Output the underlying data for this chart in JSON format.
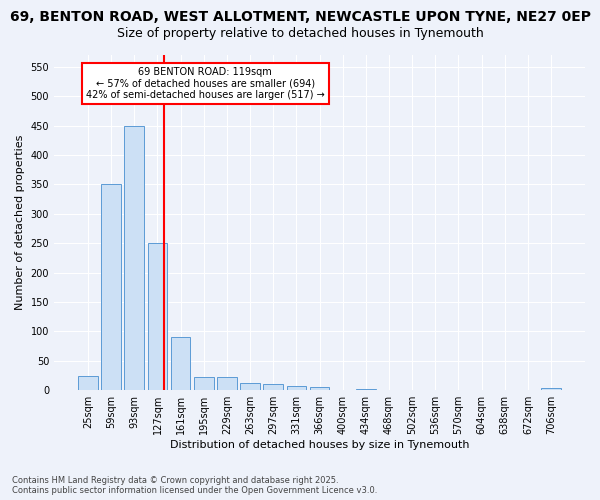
{
  "title_line1": "69, BENTON ROAD, WEST ALLOTMENT, NEWCASTLE UPON TYNE, NE27 0EP",
  "title_line2": "Size of property relative to detached houses in Tynemouth",
  "xlabel": "Distribution of detached houses by size in Tynemouth",
  "ylabel": "Number of detached properties",
  "categories": [
    "25sqm",
    "59sqm",
    "93sqm",
    "127sqm",
    "161sqm",
    "195sqm",
    "229sqm",
    "263sqm",
    "297sqm",
    "331sqm",
    "366sqm",
    "400sqm",
    "434sqm",
    "468sqm",
    "502sqm",
    "536sqm",
    "570sqm",
    "604sqm",
    "638sqm",
    "672sqm",
    "706sqm"
  ],
  "values": [
    25,
    350,
    450,
    250,
    90,
    22,
    22,
    13,
    10,
    7,
    5,
    0,
    2,
    0,
    0,
    0,
    0,
    0,
    0,
    0,
    3
  ],
  "bar_color": "#cce0f5",
  "bar_edge_color": "#5b9bd5",
  "red_line_index": 3,
  "annotation_line1": "69 BENTON ROAD: 119sqm",
  "annotation_line2": "← 57% of detached houses are smaller (694)",
  "annotation_line3": "42% of semi-detached houses are larger (517) →",
  "annotation_box_color": "white",
  "annotation_box_edge": "red",
  "red_line_color": "red",
  "ylim": [
    0,
    570
  ],
  "yticks": [
    0,
    50,
    100,
    150,
    200,
    250,
    300,
    350,
    400,
    450,
    500,
    550
  ],
  "footer_line1": "Contains HM Land Registry data © Crown copyright and database right 2025.",
  "footer_line2": "Contains public sector information licensed under the Open Government Licence v3.0.",
  "bg_color": "#eef2fa",
  "grid_color": "white",
  "title_fontsize": 10,
  "subtitle_fontsize": 9,
  "axis_label_fontsize": 8,
  "tick_fontsize": 7
}
